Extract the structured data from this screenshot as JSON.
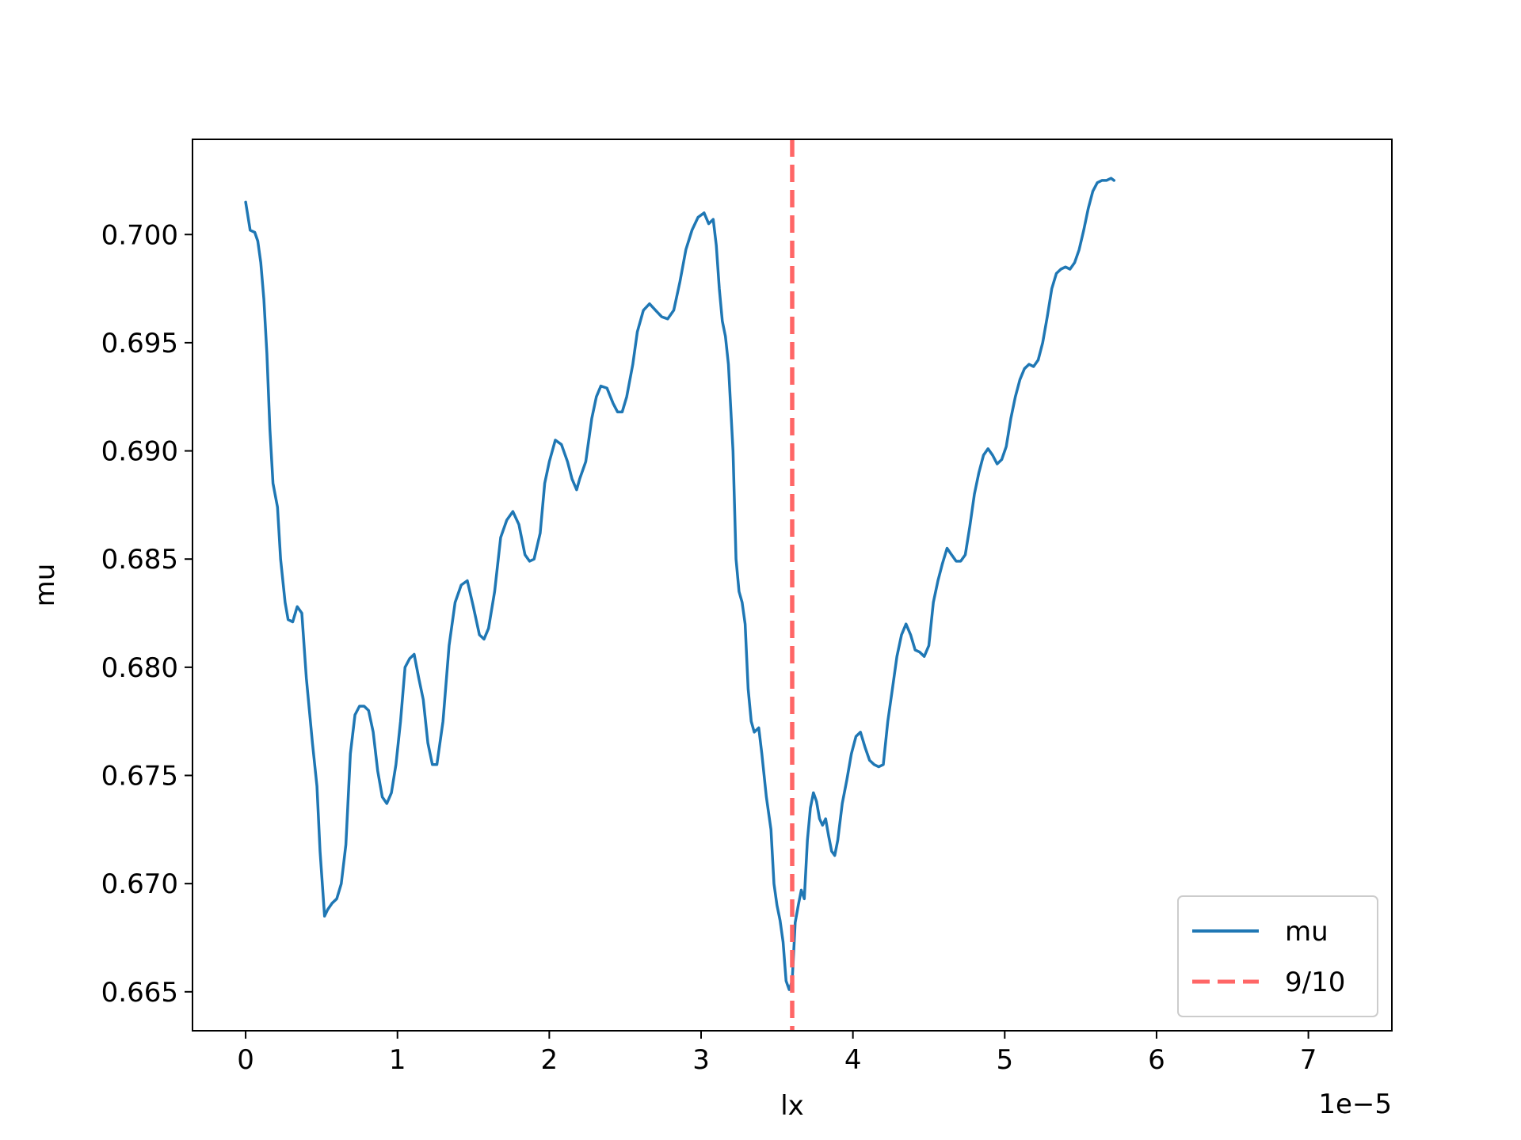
{
  "chart_data": {
    "type": "line",
    "title": "",
    "xlabel": "lx",
    "ylabel": "mu",
    "x_offset_text": "1e−5",
    "xlim": [
      -0.35,
      7.55
    ],
    "ylim": [
      0.6632,
      0.7044
    ],
    "x_ticks": [
      0,
      1,
      2,
      3,
      4,
      5,
      6,
      7
    ],
    "x_tick_labels": [
      "0",
      "1",
      "2",
      "3",
      "4",
      "5",
      "6",
      "7"
    ],
    "y_ticks": [
      0.665,
      0.67,
      0.675,
      0.68,
      0.685,
      0.69,
      0.695,
      0.7
    ],
    "y_tick_labels": [
      "0.665",
      "0.670",
      "0.675",
      "0.680",
      "0.685",
      "0.690",
      "0.695",
      "0.700"
    ],
    "grid": false,
    "legend_position": "lower-right",
    "series": [
      {
        "name": "mu",
        "color": "#1f77b4",
        "style": "solid",
        "points": [
          [
            0.0,
            0.7015
          ],
          [
            0.03,
            0.7002
          ],
          [
            0.06,
            0.7001
          ],
          [
            0.08,
            0.6997
          ],
          [
            0.1,
            0.6987
          ],
          [
            0.12,
            0.697
          ],
          [
            0.14,
            0.6945
          ],
          [
            0.16,
            0.691
          ],
          [
            0.18,
            0.6885
          ],
          [
            0.21,
            0.6874
          ],
          [
            0.23,
            0.685
          ],
          [
            0.26,
            0.683
          ],
          [
            0.28,
            0.6822
          ],
          [
            0.31,
            0.6821
          ],
          [
            0.34,
            0.6828
          ],
          [
            0.37,
            0.6825
          ],
          [
            0.4,
            0.6795
          ],
          [
            0.44,
            0.6765
          ],
          [
            0.47,
            0.6745
          ],
          [
            0.49,
            0.6715
          ],
          [
            0.52,
            0.6685
          ],
          [
            0.54,
            0.6688
          ],
          [
            0.57,
            0.6691
          ],
          [
            0.6,
            0.6693
          ],
          [
            0.63,
            0.67
          ],
          [
            0.66,
            0.6718
          ],
          [
            0.69,
            0.676
          ],
          [
            0.72,
            0.6778
          ],
          [
            0.75,
            0.6782
          ],
          [
            0.78,
            0.6782
          ],
          [
            0.81,
            0.678
          ],
          [
            0.84,
            0.677
          ],
          [
            0.87,
            0.6752
          ],
          [
            0.9,
            0.674
          ],
          [
            0.93,
            0.6737
          ],
          [
            0.96,
            0.6742
          ],
          [
            0.99,
            0.6755
          ],
          [
            1.02,
            0.6775
          ],
          [
            1.05,
            0.68
          ],
          [
            1.08,
            0.6804
          ],
          [
            1.11,
            0.6806
          ],
          [
            1.14,
            0.6795
          ],
          [
            1.17,
            0.6785
          ],
          [
            1.2,
            0.6765
          ],
          [
            1.23,
            0.6755
          ],
          [
            1.26,
            0.6755
          ],
          [
            1.3,
            0.6775
          ],
          [
            1.34,
            0.681
          ],
          [
            1.38,
            0.683
          ],
          [
            1.42,
            0.6838
          ],
          [
            1.46,
            0.684
          ],
          [
            1.5,
            0.6828
          ],
          [
            1.54,
            0.6815
          ],
          [
            1.57,
            0.6813
          ],
          [
            1.6,
            0.6818
          ],
          [
            1.64,
            0.6835
          ],
          [
            1.68,
            0.686
          ],
          [
            1.72,
            0.6868
          ],
          [
            1.76,
            0.6872
          ],
          [
            1.8,
            0.6866
          ],
          [
            1.84,
            0.6852
          ],
          [
            1.87,
            0.6849
          ],
          [
            1.9,
            0.685
          ],
          [
            1.94,
            0.6862
          ],
          [
            1.97,
            0.6885
          ],
          [
            2.0,
            0.6895
          ],
          [
            2.04,
            0.6905
          ],
          [
            2.08,
            0.6903
          ],
          [
            2.12,
            0.6895
          ],
          [
            2.15,
            0.6887
          ],
          [
            2.18,
            0.6882
          ],
          [
            2.2,
            0.6887
          ],
          [
            2.24,
            0.6895
          ],
          [
            2.28,
            0.6915
          ],
          [
            2.31,
            0.6925
          ],
          [
            2.34,
            0.693
          ],
          [
            2.38,
            0.6929
          ],
          [
            2.42,
            0.6922
          ],
          [
            2.45,
            0.6918
          ],
          [
            2.48,
            0.6918
          ],
          [
            2.51,
            0.6925
          ],
          [
            2.55,
            0.694
          ],
          [
            2.58,
            0.6955
          ],
          [
            2.62,
            0.6965
          ],
          [
            2.66,
            0.6968
          ],
          [
            2.7,
            0.6965
          ],
          [
            2.74,
            0.6962
          ],
          [
            2.78,
            0.6961
          ],
          [
            2.82,
            0.6965
          ],
          [
            2.86,
            0.6978
          ],
          [
            2.9,
            0.6993
          ],
          [
            2.94,
            0.7002
          ],
          [
            2.98,
            0.7008
          ],
          [
            3.02,
            0.701
          ],
          [
            3.05,
            0.7005
          ],
          [
            3.08,
            0.7007
          ],
          [
            3.1,
            0.6995
          ],
          [
            3.12,
            0.6975
          ],
          [
            3.14,
            0.696
          ],
          [
            3.16,
            0.6953
          ],
          [
            3.18,
            0.694
          ],
          [
            3.21,
            0.69
          ],
          [
            3.23,
            0.685
          ],
          [
            3.25,
            0.6835
          ],
          [
            3.27,
            0.683
          ],
          [
            3.29,
            0.682
          ],
          [
            3.31,
            0.679
          ],
          [
            3.33,
            0.6775
          ],
          [
            3.35,
            0.677
          ],
          [
            3.38,
            0.6772
          ],
          [
            3.4,
            0.676
          ],
          [
            3.43,
            0.674
          ],
          [
            3.46,
            0.6725
          ],
          [
            3.48,
            0.67
          ],
          [
            3.5,
            0.669
          ],
          [
            3.52,
            0.6683
          ],
          [
            3.54,
            0.6673
          ],
          [
            3.56,
            0.6655
          ],
          [
            3.58,
            0.6651
          ],
          [
            3.6,
            0.6655
          ],
          [
            3.62,
            0.6682
          ],
          [
            3.64,
            0.669
          ],
          [
            3.66,
            0.6697
          ],
          [
            3.68,
            0.6693
          ],
          [
            3.7,
            0.672
          ],
          [
            3.72,
            0.6735
          ],
          [
            3.74,
            0.6742
          ],
          [
            3.76,
            0.6738
          ],
          [
            3.78,
            0.673
          ],
          [
            3.8,
            0.6727
          ],
          [
            3.82,
            0.673
          ],
          [
            3.84,
            0.6722
          ],
          [
            3.86,
            0.6715
          ],
          [
            3.88,
            0.6713
          ],
          [
            3.9,
            0.672
          ],
          [
            3.93,
            0.6737
          ],
          [
            3.96,
            0.6748
          ],
          [
            3.99,
            0.676
          ],
          [
            4.02,
            0.6768
          ],
          [
            4.05,
            0.677
          ],
          [
            4.08,
            0.6763
          ],
          [
            4.11,
            0.6757
          ],
          [
            4.14,
            0.6755
          ],
          [
            4.17,
            0.6754
          ],
          [
            4.2,
            0.6755
          ],
          [
            4.23,
            0.6775
          ],
          [
            4.26,
            0.679
          ],
          [
            4.29,
            0.6805
          ],
          [
            4.32,
            0.6815
          ],
          [
            4.35,
            0.682
          ],
          [
            4.38,
            0.6815
          ],
          [
            4.41,
            0.6808
          ],
          [
            4.44,
            0.6807
          ],
          [
            4.47,
            0.6805
          ],
          [
            4.5,
            0.681
          ],
          [
            4.53,
            0.683
          ],
          [
            4.56,
            0.684
          ],
          [
            4.59,
            0.6848
          ],
          [
            4.62,
            0.6855
          ],
          [
            4.65,
            0.6852
          ],
          [
            4.68,
            0.6849
          ],
          [
            4.71,
            0.6849
          ],
          [
            4.74,
            0.6852
          ],
          [
            4.77,
            0.6865
          ],
          [
            4.8,
            0.688
          ],
          [
            4.83,
            0.689
          ],
          [
            4.86,
            0.6898
          ],
          [
            4.89,
            0.6901
          ],
          [
            4.92,
            0.6898
          ],
          [
            4.95,
            0.6894
          ],
          [
            4.98,
            0.6896
          ],
          [
            5.01,
            0.6902
          ],
          [
            5.04,
            0.6915
          ],
          [
            5.07,
            0.6925
          ],
          [
            5.1,
            0.6933
          ],
          [
            5.13,
            0.6938
          ],
          [
            5.16,
            0.694
          ],
          [
            5.19,
            0.6939
          ],
          [
            5.22,
            0.6942
          ],
          [
            5.25,
            0.695
          ],
          [
            5.28,
            0.6962
          ],
          [
            5.31,
            0.6975
          ],
          [
            5.34,
            0.6982
          ],
          [
            5.37,
            0.6984
          ],
          [
            5.4,
            0.6985
          ],
          [
            5.43,
            0.6984
          ],
          [
            5.46,
            0.6987
          ],
          [
            5.49,
            0.6993
          ],
          [
            5.52,
            0.7002
          ],
          [
            5.55,
            0.7012
          ],
          [
            5.58,
            0.702
          ],
          [
            5.61,
            0.7024
          ],
          [
            5.64,
            0.7025
          ],
          [
            5.67,
            0.7025
          ],
          [
            5.7,
            0.7026
          ],
          [
            5.72,
            0.7025
          ]
        ]
      }
    ],
    "vline": {
      "name": "9/10",
      "x": 3.6,
      "color": "#ff6666",
      "style": "dashed"
    }
  }
}
